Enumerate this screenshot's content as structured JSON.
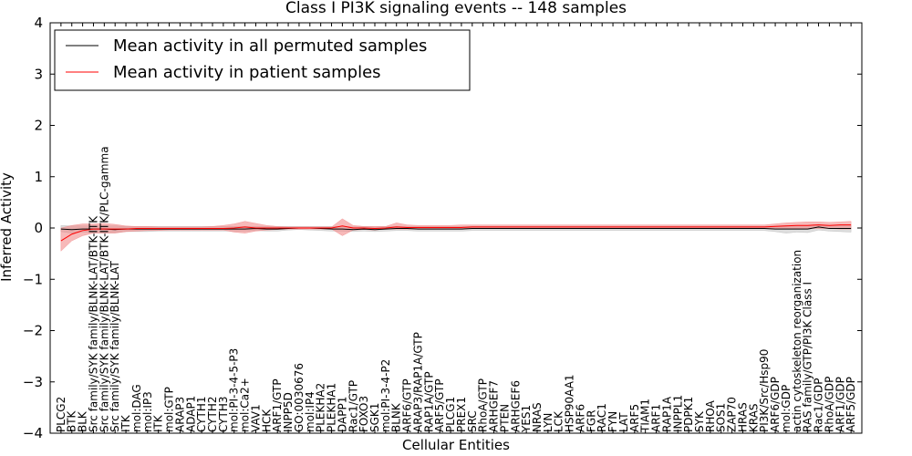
{
  "chart_data": {
    "type": "line",
    "title": "Class I PI3K signaling events -- 148 samples",
    "xlabel": "Cellular Entities",
    "ylabel": "Inferred Activity",
    "ylim": [
      -4,
      4
    ],
    "yticks": [
      -4,
      -3,
      -2,
      -1,
      0,
      1,
      2,
      3,
      4
    ],
    "ytick_labels": [
      "−4",
      "−3",
      "−2",
      "−1",
      "0",
      "1",
      "2",
      "3",
      "4"
    ],
    "legend_position": "top-left",
    "categories": [
      "PLCG2",
      "BTK",
      "BLK",
      "Src family/SYK family/BLNK-LAT/BTK-ITK",
      "Src family/SYK family/BLNK-LAT/BTK-ITK/PLC-gamma",
      "Src family/SYK family/BLNK-LAT",
      "ITK",
      "mol:DAG",
      "mol:IP3",
      "ITK",
      "mol:GTP",
      "ARAP3",
      "ADAP1",
      "CYTH1",
      "CYTH2",
      "CYTH3",
      "mol:PI-3-4-5-P3",
      "mol:Ca2+",
      "VAV1",
      "HCK",
      "ARF1/GTP",
      "INPP5D",
      "GO:0030676",
      "mol:IP4",
      "PLEKHA2",
      "PLEKHA1",
      "DAPP1",
      "Rac1/GTP",
      "FOXO3",
      "SGK1",
      "mol:PI-3-4-P2",
      "BLNK",
      "ARF6/GTP",
      "ARAP3/RAP1A/GTP",
      "RAP1A/GTP",
      "ARF5/GTP",
      "PLCG1",
      "PREX1",
      "SRC",
      "RhoA/GTP",
      "ARHGEF7",
      "PTEN",
      "ARHGEF6",
      "YES1",
      "NRAS",
      "LYN",
      "LCK",
      "HSP90AA1",
      "ARF6",
      "FGR",
      "RAC1",
      "FYN",
      "LAT",
      "ARF5",
      "TIAM1",
      "ARF1",
      "RAP1A",
      "INPPL1",
      "PDPK1",
      "SYK",
      "RHOA",
      "SOS1",
      "ZAP70",
      "HRAS",
      "KRAS",
      "PI3K/Src/Hsp90",
      "ARF6/GDP",
      "mol:GDP",
      "actin cytoskeleton reorganization",
      "RAS family/GTP/PI3K Class I",
      "Rac1/GDP",
      "RhoA/GDP",
      "ARF1/GDP",
      "ARF5/GDP"
    ],
    "series": [
      {
        "name": "Mean activity in all permuted samples",
        "color": "#000000",
        "band_color": "#b3b3b3",
        "values": [
          -0.02,
          -0.03,
          -0.02,
          -0.02,
          -0.02,
          -0.03,
          -0.02,
          -0.02,
          -0.02,
          -0.02,
          -0.02,
          -0.02,
          -0.02,
          -0.02,
          -0.02,
          -0.02,
          -0.02,
          -0.02,
          -0.01,
          -0.02,
          -0.02,
          -0.01,
          0.0,
          0.0,
          -0.01,
          -0.02,
          -0.02,
          -0.03,
          -0.02,
          -0.03,
          -0.02,
          -0.01,
          -0.01,
          -0.02,
          -0.02,
          -0.02,
          -0.02,
          -0.02,
          -0.01,
          -0.01,
          -0.01,
          -0.01,
          -0.01,
          -0.01,
          -0.01,
          -0.01,
          -0.01,
          -0.01,
          -0.01,
          -0.01,
          -0.01,
          -0.01,
          -0.01,
          -0.01,
          -0.01,
          -0.01,
          -0.01,
          -0.01,
          -0.01,
          -0.01,
          -0.01,
          -0.01,
          -0.01,
          -0.01,
          -0.01,
          -0.01,
          -0.02,
          -0.02,
          -0.02,
          -0.02,
          0.02,
          -0.01,
          -0.01,
          -0.01
        ],
        "lower": [
          -0.07,
          -0.1,
          -0.08,
          -0.09,
          -0.09,
          -0.09,
          -0.07,
          -0.07,
          -0.07,
          -0.06,
          -0.06,
          -0.06,
          -0.06,
          -0.06,
          -0.06,
          -0.06,
          -0.06,
          -0.06,
          -0.05,
          -0.06,
          -0.06,
          -0.04,
          -0.03,
          -0.04,
          -0.05,
          -0.06,
          -0.06,
          -0.07,
          -0.06,
          -0.07,
          -0.06,
          -0.05,
          -0.05,
          -0.06,
          -0.06,
          -0.06,
          -0.06,
          -0.06,
          -0.05,
          -0.05,
          -0.05,
          -0.05,
          -0.05,
          -0.05,
          -0.05,
          -0.05,
          -0.05,
          -0.05,
          -0.05,
          -0.05,
          -0.05,
          -0.05,
          -0.05,
          -0.05,
          -0.05,
          -0.05,
          -0.05,
          -0.05,
          -0.05,
          -0.05,
          -0.05,
          -0.05,
          -0.05,
          -0.05,
          -0.05,
          -0.05,
          -0.07,
          -0.1,
          -0.08,
          -0.09,
          -0.04,
          -0.06,
          -0.07,
          -0.08
        ],
        "upper": [
          0.05,
          0.04,
          0.04,
          0.04,
          0.04,
          0.04,
          0.03,
          0.03,
          0.03,
          0.03,
          0.03,
          0.03,
          0.03,
          0.03,
          0.03,
          0.03,
          0.03,
          0.03,
          0.03,
          0.03,
          0.03,
          0.03,
          0.03,
          0.03,
          0.03,
          0.03,
          0.03,
          0.02,
          0.03,
          0.02,
          0.03,
          0.03,
          0.03,
          0.03,
          0.03,
          0.03,
          0.03,
          0.03,
          0.03,
          0.03,
          0.03,
          0.03,
          0.03,
          0.03,
          0.03,
          0.03,
          0.03,
          0.03,
          0.03,
          0.03,
          0.03,
          0.03,
          0.03,
          0.03,
          0.03,
          0.03,
          0.03,
          0.03,
          0.03,
          0.03,
          0.03,
          0.03,
          0.03,
          0.03,
          0.03,
          0.03,
          0.04,
          0.05,
          0.05,
          0.05,
          0.07,
          0.05,
          0.05,
          0.06
        ]
      },
      {
        "name": "Mean activity in patient samples",
        "color": "#ff0000",
        "band_color": "#f08080",
        "values": [
          -0.25,
          -0.12,
          -0.05,
          -0.02,
          -0.02,
          -0.02,
          -0.02,
          -0.01,
          -0.01,
          -0.01,
          -0.01,
          -0.01,
          -0.01,
          -0.01,
          -0.01,
          -0.01,
          0.0,
          0.02,
          0.0,
          0.0,
          0.0,
          0.0,
          0.0,
          0.0,
          0.0,
          0.0,
          0.04,
          0.0,
          0.0,
          -0.01,
          0.0,
          0.02,
          0.01,
          0.01,
          0.01,
          0.01,
          0.01,
          0.01,
          0.02,
          0.02,
          0.02,
          0.02,
          0.02,
          0.02,
          0.02,
          0.02,
          0.02,
          0.02,
          0.02,
          0.02,
          0.02,
          0.02,
          0.02,
          0.02,
          0.02,
          0.02,
          0.02,
          0.02,
          0.02,
          0.02,
          0.02,
          0.02,
          0.02,
          0.02,
          0.02,
          0.02,
          0.03,
          0.04,
          0.05,
          0.05,
          0.06,
          0.05,
          0.06,
          0.06
        ],
        "lower": [
          -0.45,
          -0.25,
          -0.15,
          -0.1,
          -0.1,
          -0.1,
          -0.07,
          -0.06,
          -0.05,
          -0.05,
          -0.04,
          -0.04,
          -0.04,
          -0.04,
          -0.04,
          -0.04,
          -0.08,
          -0.1,
          -0.06,
          -0.04,
          -0.03,
          -0.02,
          -0.02,
          -0.02,
          -0.02,
          -0.02,
          -0.15,
          -0.04,
          -0.03,
          -0.04,
          -0.02,
          -0.02,
          -0.02,
          -0.02,
          -0.02,
          -0.02,
          -0.02,
          -0.02,
          -0.01,
          -0.01,
          -0.01,
          -0.01,
          -0.01,
          -0.01,
          -0.01,
          -0.01,
          -0.01,
          -0.01,
          -0.01,
          -0.01,
          -0.01,
          -0.01,
          -0.01,
          -0.01,
          -0.01,
          -0.01,
          -0.01,
          -0.01,
          -0.01,
          -0.01,
          -0.01,
          -0.01,
          -0.01,
          -0.01,
          -0.01,
          -0.01,
          -0.02,
          -0.02,
          -0.01,
          -0.01,
          -0.01,
          -0.01,
          -0.02,
          -0.02
        ],
        "upper": [
          0.0,
          0.05,
          0.08,
          0.08,
          0.09,
          0.07,
          0.04,
          0.03,
          0.03,
          0.02,
          0.02,
          0.02,
          0.02,
          0.02,
          0.03,
          0.05,
          0.08,
          0.13,
          0.09,
          0.05,
          0.03,
          0.02,
          0.02,
          0.02,
          0.02,
          0.02,
          0.18,
          0.05,
          0.03,
          0.03,
          0.03,
          0.1,
          0.06,
          0.05,
          0.05,
          0.05,
          0.05,
          0.06,
          0.06,
          0.06,
          0.06,
          0.06,
          0.06,
          0.06,
          0.06,
          0.06,
          0.06,
          0.06,
          0.06,
          0.06,
          0.06,
          0.06,
          0.06,
          0.06,
          0.06,
          0.06,
          0.06,
          0.06,
          0.06,
          0.06,
          0.06,
          0.06,
          0.06,
          0.06,
          0.06,
          0.06,
          0.08,
          0.1,
          0.11,
          0.12,
          0.12,
          0.11,
          0.12,
          0.13
        ]
      }
    ]
  }
}
